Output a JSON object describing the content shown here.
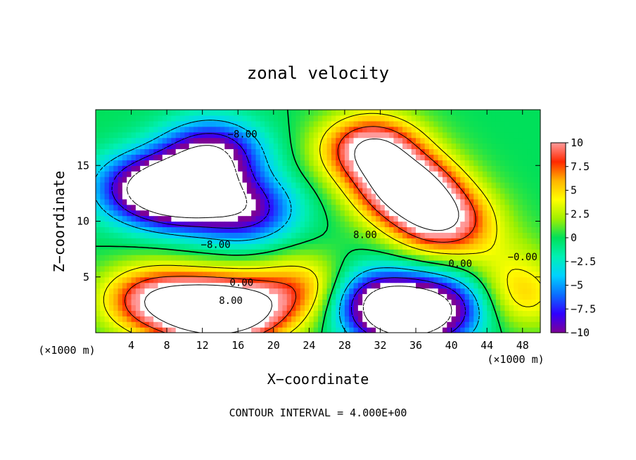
{
  "chart_data": {
    "type": "heatmap",
    "title": "zonal velocity",
    "xlabel": "X−coordinate",
    "ylabel": "Z−coordinate",
    "x_unit_left": "(×1000 m)",
    "x_unit_right": "(×1000 m)",
    "xlim": [
      0,
      50
    ],
    "ylim": [
      0,
      20
    ],
    "xticks": [
      4,
      8,
      12,
      16,
      20,
      24,
      28,
      32,
      36,
      40,
      44,
      48
    ],
    "yticks": [
      5,
      10,
      15
    ],
    "colorbar": {
      "range": [
        -10,
        10
      ],
      "ticks": [
        "10",
        "7.5",
        "5",
        "2.5",
        "0",
        "−2.5",
        "−5",
        "−7.5",
        "−10"
      ],
      "tick_values": [
        10,
        7.5,
        5,
        2.5,
        0,
        -2.5,
        -5,
        -7.5,
        -10
      ],
      "colormap": [
        "#7d0096",
        "#3000ff",
        "#0a6eff",
        "#00d2ff",
        "#00f0b4",
        "#00e05a",
        "#a0f000",
        "#ffff00",
        "#ffb400",
        "#ff2800",
        "#ff9b9b"
      ],
      "overflow_color": "#ffffff"
    },
    "contour_labels": [
      {
        "text": "−8.00",
        "x": 13.5,
        "z": 7.6
      },
      {
        "text": "−8.00",
        "x": 16.5,
        "z": 17.5
      },
      {
        "text": "0.00",
        "x": 16.4,
        "z": 4.2
      },
      {
        "text": "8.00",
        "x": 15.2,
        "z": 2.6
      },
      {
        "text": "8.00",
        "x": 30.3,
        "z": 8.5
      },
      {
        "text": "0.00",
        "x": 41.0,
        "z": 5.9
      },
      {
        "text": "−0.00",
        "x": 48.0,
        "z": 6.5
      }
    ],
    "contour_interval": "CONTOUR INTERVAL = 4.000E+00",
    "features": [
      {
        "x": 10,
        "z": 12.5,
        "value": -14
      },
      {
        "x": 13,
        "z": 16.0,
        "value": -11
      },
      {
        "x": 5,
        "z": 13.0,
        "value": -9
      },
      {
        "x": 17,
        "z": 11.0,
        "value": -9
      },
      {
        "x": 35,
        "z": 13.0,
        "value": 14
      },
      {
        "x": 31,
        "z": 16.5,
        "value": 12
      },
      {
        "x": 39,
        "z": 10.0,
        "value": 11
      },
      {
        "x": 12,
        "z": 2.0,
        "value": 13
      },
      {
        "x": 6,
        "z": 3.0,
        "value": 9
      },
      {
        "x": 17,
        "z": 2.0,
        "value": 10
      },
      {
        "x": 35,
        "z": 1.5,
        "value": -13
      },
      {
        "x": 31,
        "z": 3.0,
        "value": -8
      },
      {
        "x": 40,
        "z": 2.5,
        "value": -7
      },
      {
        "x": 23.5,
        "z": 4.0,
        "value": 6
      },
      {
        "x": 46,
        "z": 6.5,
        "value": 2
      },
      {
        "x": 47.5,
        "z": 3.2,
        "value": 5
      }
    ]
  }
}
